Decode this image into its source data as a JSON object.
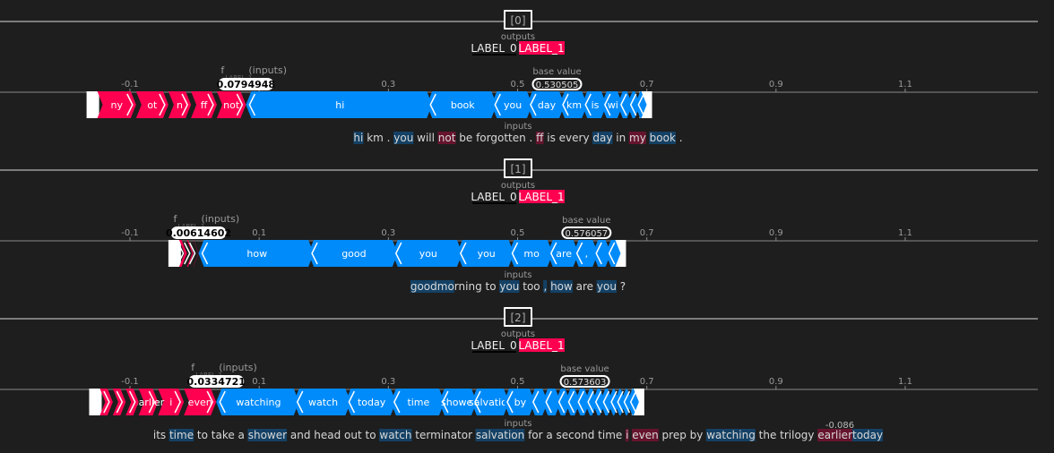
{
  "panels": [
    {
      "index_label": "[0]",
      "outputs_label": "outputs",
      "label0": "LABEL_0",
      "label1": "LABEL_1",
      "fx_label": "f",
      "fx_sub": "LABEL_1",
      "fx_paren": "(inputs)",
      "fx_value": "0.0794948",
      "base_label": "base value",
      "base_value_text": "0.530505",
      "inputs_label": "inputs",
      "ticks": [
        "-0.1",
        "0.1",
        "0.3",
        "0.5",
        "0.7",
        "0.9",
        "1.1"
      ],
      "sentence": [
        {
          "t": "hi",
          "c": "blue"
        },
        {
          "t": " km .",
          "c": "none"
        },
        {
          "t": " you",
          "c": "blue"
        },
        {
          "t": " will",
          "c": "none"
        },
        {
          "t": " not",
          "c": "red"
        },
        {
          "t": " be forgotten .",
          "c": "none"
        },
        {
          "t": " ff",
          "c": "red"
        },
        {
          "t": " is",
          "c": "none"
        },
        {
          "t": " every",
          "c": "none"
        },
        {
          "t": " day",
          "c": "blue"
        },
        {
          "t": " in",
          "c": "none"
        },
        {
          "t": " my",
          "c": "red"
        },
        {
          "t": " book",
          "c": "blue"
        },
        {
          "t": " .",
          "c": "none"
        }
      ]
    },
    {
      "index_label": "[1]",
      "outputs_label": "outputs",
      "label0": "LABEL_0",
      "label1": "LABEL_1",
      "fx_label": "f",
      "fx_sub": "LABEL_1",
      "fx_paren": "(inputs)",
      "fx_value": "0.00614602",
      "base_label": "base value",
      "base_value_text": "0.576057",
      "inputs_label": "inputs",
      "ticks": [
        "-0.1",
        "0.1",
        "0.3",
        "0.5",
        "0.7",
        "0.9",
        "1.1"
      ],
      "sentence": [
        {
          "t": "good",
          "c": "blue"
        },
        {
          "t": "mo",
          "c": "blue"
        },
        {
          "t": "rning to",
          "c": "none"
        },
        {
          "t": " you",
          "c": "blue"
        },
        {
          "t": " too",
          "c": "none"
        },
        {
          "t": " ,",
          "c": "blue"
        },
        {
          "t": " how",
          "c": "blue"
        },
        {
          "t": " are",
          "c": "none"
        },
        {
          "t": " you",
          "c": "blue"
        },
        {
          "t": " ?",
          "c": "none"
        }
      ]
    },
    {
      "index_label": "[2]",
      "outputs_label": "outputs",
      "label0": "LABEL_0",
      "label1": "LABEL_1",
      "fx_label": "f",
      "fx_sub": "LABEL_1",
      "fx_paren": "(inputs)",
      "fx_value": "0.0334721",
      "base_label": "base value",
      "base_value_text": "0.573603",
      "inputs_label": "inputs",
      "ticks": [
        "-0.1",
        "0.1",
        "0.3",
        "0.5",
        "0.7",
        "0.9",
        "1.1"
      ],
      "sentence": [
        {
          "t": "its",
          "c": "none"
        },
        {
          "t": " time",
          "c": "blue"
        },
        {
          "t": " to take a",
          "c": "none"
        },
        {
          "t": " shower",
          "c": "blue"
        },
        {
          "t": " and head out to",
          "c": "none"
        },
        {
          "t": " watch",
          "c": "blue"
        },
        {
          "t": " terminator",
          "c": "none"
        },
        {
          "t": " salvation",
          "c": "blue"
        },
        {
          "t": " for a second time",
          "c": "none"
        },
        {
          "t": " i",
          "c": "red"
        },
        {
          "t": " even",
          "c": "red"
        },
        {
          "t": " prep by",
          "c": "none"
        },
        {
          "t": " watching",
          "c": "blue"
        },
        {
          "t": " the trilogy",
          "c": "none"
        },
        {
          "t": " earlier",
          "c": "red"
        },
        {
          "t": "today",
          "c": "blue"
        }
      ],
      "annotation": "-0.086"
    }
  ],
  "chart_data": [
    {
      "type": "force",
      "xlim": [
        -0.2,
        1.2
      ],
      "base_value": 0.530505,
      "output_value": 0.0794948,
      "positive_features": [
        "ny",
        "ot",
        "n",
        "ff",
        "not"
      ],
      "negative_features": [
        "hi",
        "book",
        "you",
        "day",
        "km",
        "is",
        "wi",
        "",
        "",
        ""
      ],
      "positive_values": [
        0.06,
        0.05,
        0.035,
        0.04,
        0.045
      ],
      "negative_values": [
        0.28,
        0.1,
        0.055,
        0.05,
        0.035,
        0.03,
        0.025,
        0.015,
        0.012,
        0.01
      ],
      "colors": {
        "positive": "#ff0051",
        "negative": "#008bfb"
      }
    },
    {
      "type": "force",
      "xlim": [
        -0.2,
        1.2
      ],
      "base_value": 0.576057,
      "output_value": 0.00614602,
      "positive_features": [
        "",
        "",
        ""
      ],
      "negative_features": [
        "how",
        "good",
        "you",
        "you",
        "mo",
        "are",
        ",",
        "",
        ""
      ],
      "positive_values": [
        0.012,
        0.01,
        0.008
      ],
      "negative_values": [
        0.17,
        0.13,
        0.1,
        0.08,
        0.06,
        0.04,
        0.03,
        0.02,
        0.015
      ],
      "colors": {
        "positive": "#ff0051",
        "negative": "#008bfb"
      }
    },
    {
      "type": "force",
      "xlim": [
        -0.2,
        1.2
      ],
      "base_value": 0.573603,
      "output_value": 0.0334721,
      "positive_features": [
        "",
        "",
        "",
        "earlier",
        "i",
        "even"
      ],
      "negative_features": [
        "watching",
        "watch",
        "today",
        "time",
        "shower",
        "salvation",
        "by",
        "",
        "",
        "",
        "",
        "",
        "",
        "",
        "",
        "",
        "",
        "",
        ""
      ],
      "positive_values": [
        0.02,
        0.02,
        0.02,
        0.03,
        0.04,
        0.05
      ],
      "negative_values": [
        0.12,
        0.08,
        0.07,
        0.075,
        0.05,
        0.05,
        0.04,
        0.02,
        0.02,
        0.015,
        0.015,
        0.015,
        0.012,
        0.012,
        0.012,
        0.01,
        0.01,
        0.01,
        0.01
      ],
      "colors": {
        "positive": "#ff0051",
        "negative": "#008bfb"
      }
    }
  ]
}
